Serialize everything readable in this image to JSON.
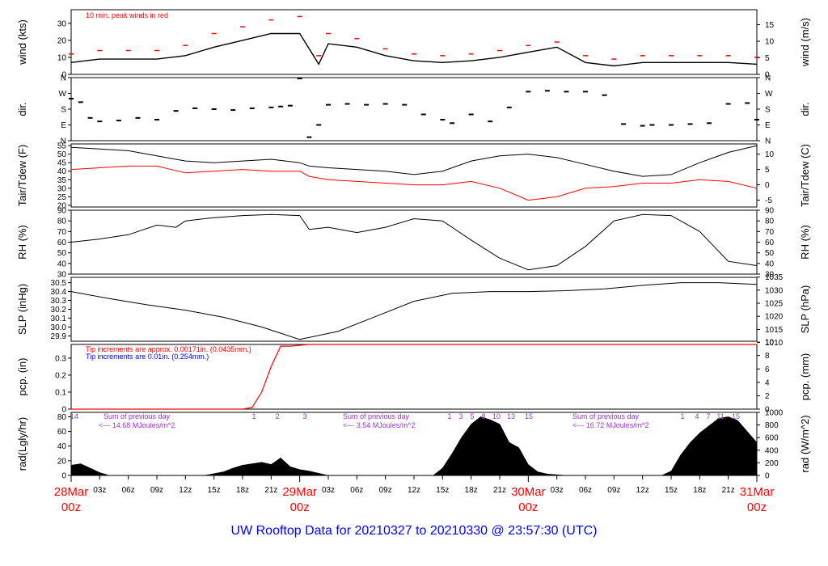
{
  "title": "UW Rooftop Data for 20210327  to  20210330 @ 23:57:30  (UTC)",
  "colors": {
    "axis": "#000000",
    "peak": "#ff0000",
    "precip_approx": "#ff0000",
    "precip_exact": "#0000ff",
    "solar_note": "#9933cc",
    "date": "#ff0000",
    "title": "#0000ff"
  },
  "chart_data": [
    {
      "type": "line",
      "panel": "wind",
      "ylabel_left": "wind (kts)",
      "ylabel_right": "wind (m/s)",
      "ylim": [
        0,
        38
      ],
      "left_ticks": [
        0,
        10,
        20,
        30
      ],
      "right_ticks": [
        0,
        5,
        10,
        15
      ],
      "right_scale": 0.514,
      "annotation": "10 min. peak winds in red",
      "x_hours": [
        0,
        3,
        6,
        9,
        12,
        15,
        18,
        21,
        24,
        26,
        27,
        30,
        33,
        36,
        39,
        42,
        45,
        48,
        51,
        54,
        57,
        60,
        63,
        66,
        69,
        72
      ],
      "series": [
        {
          "values": [
            7,
            9,
            9,
            9,
            11,
            16,
            20,
            24,
            24,
            6,
            18,
            16,
            11,
            8,
            7,
            8,
            10,
            13,
            16,
            7,
            5,
            7,
            7,
            7,
            7,
            6
          ]
        },
        {
          "values": [
            12,
            14,
            14,
            14,
            17,
            24,
            28,
            32,
            34,
            11,
            24,
            21,
            15,
            12,
            11,
            12,
            14,
            17,
            19,
            11,
            9,
            11,
            11,
            11,
            11,
            10
          ]
        }
      ]
    },
    {
      "type": "scatter",
      "panel": "dir",
      "ylabel_left": "dir.",
      "ylabel_right": "dir.",
      "ylim": [
        0,
        360
      ],
      "tick_values": [
        0,
        90,
        180,
        270,
        360
      ],
      "tick_labels": [
        "N",
        "E",
        "S",
        "W",
        "N"
      ],
      "x_hours": [
        0,
        1,
        2,
        3,
        5,
        7,
        9,
        11,
        13,
        15,
        17,
        19,
        21,
        22,
        23,
        24,
        25,
        26,
        27,
        29,
        31,
        33,
        35,
        37,
        39,
        40,
        42,
        44,
        46,
        48,
        50,
        52,
        54,
        56,
        58,
        60,
        61,
        63,
        65,
        67,
        69,
        71,
        72
      ],
      "values": [
        240,
        220,
        130,
        110,
        115,
        130,
        120,
        170,
        185,
        180,
        175,
        185,
        190,
        195,
        200,
        355,
        20,
        90,
        205,
        210,
        205,
        210,
        205,
        150,
        120,
        100,
        150,
        110,
        190,
        280,
        285,
        280,
        280,
        260,
        95,
        85,
        90,
        90,
        95,
        100,
        210,
        215,
        120
      ]
    },
    {
      "type": "line",
      "panel": "temp",
      "ylabel_left": "Tair/Tdew (F)",
      "ylabel_right": "Tair/Tdew (C)",
      "ylim": [
        19,
        56
      ],
      "left_ticks": [
        20,
        25,
        30,
        35,
        40,
        45,
        50,
        55
      ],
      "right_ticks": [
        -5,
        0,
        5,
        10
      ],
      "x_hours": [
        0,
        3,
        6,
        9,
        12,
        15,
        18,
        21,
        24,
        25,
        27,
        30,
        33,
        36,
        39,
        42,
        45,
        48,
        51,
        54,
        57,
        60,
        63,
        66,
        69,
        72
      ],
      "series": [
        {
          "name": "Tair",
          "values": [
            54,
            53,
            52,
            49,
            46,
            45,
            46,
            47,
            45,
            43,
            42,
            41,
            40,
            38,
            40,
            46,
            49,
            50,
            48,
            44,
            40,
            37,
            38,
            45,
            51,
            55
          ]
        },
        {
          "name": "Tdew",
          "values": [
            41,
            42,
            43,
            43,
            39,
            40,
            41,
            40,
            40,
            37,
            35,
            34,
            33,
            32,
            32,
            34,
            30,
            23,
            25,
            30,
            31,
            33,
            33,
            35,
            34,
            30
          ]
        }
      ]
    },
    {
      "type": "line",
      "panel": "rh",
      "ylabel_left": "RH (%)",
      "ylabel_right": "RH (%)",
      "ylim": [
        30,
        90
      ],
      "left_ticks": [
        30,
        40,
        50,
        60,
        70,
        80,
        90
      ],
      "x_hours": [
        0,
        3,
        6,
        9,
        11,
        12,
        15,
        18,
        21,
        24,
        25,
        27,
        30,
        33,
        36,
        39,
        42,
        45,
        48,
        51,
        54,
        57,
        60,
        63,
        66,
        69,
        72
      ],
      "series": [
        {
          "values": [
            60,
            63,
            67,
            76,
            74,
            80,
            83,
            85,
            86,
            85,
            72,
            74,
            69,
            74,
            82,
            80,
            62,
            45,
            34,
            38,
            56,
            80,
            86,
            85,
            70,
            42,
            38
          ]
        }
      ]
    },
    {
      "type": "line",
      "panel": "slp",
      "ylabel_left": "SLP (inHg)",
      "ylabel_right": "SLP (hPa)",
      "ylim": [
        29.84,
        30.56
      ],
      "left_ticks": [
        29.9,
        30.0,
        30.1,
        30.2,
        30.3,
        30.4,
        30.5
      ],
      "right_ticks": [
        1010,
        1015,
        1020,
        1025,
        1030,
        1035
      ],
      "x_hours": [
        0,
        4,
        8,
        12,
        16,
        20,
        24,
        28,
        32,
        36,
        40,
        44,
        48,
        52,
        56,
        60,
        64,
        68,
        72
      ],
      "series": [
        {
          "values": [
            30.4,
            30.32,
            30.25,
            30.19,
            30.11,
            30.0,
            29.86,
            29.95,
            30.12,
            30.29,
            30.38,
            30.4,
            30.4,
            30.41,
            30.43,
            30.47,
            30.5,
            30.5,
            30.48
          ]
        }
      ]
    },
    {
      "type": "line",
      "panel": "pcp",
      "ylabel_left": "pcp. (in)",
      "ylabel_right": "pcp. (mm)",
      "ylim": [
        0,
        0.38
      ],
      "left_ticks": [
        0.0,
        0.1,
        0.2,
        0.3
      ],
      "right_ticks": [
        0,
        2,
        4,
        6,
        8,
        10
      ],
      "note_red": "Tip increments are approx. 0.00171in. (0.0435mm.)",
      "note_blue": "Tip increments are 0.01in. (0.254mm.)",
      "x_hours": [
        0,
        18,
        19,
        20,
        21,
        22,
        23,
        25,
        72
      ],
      "series": [
        {
          "values": [
            0,
            0,
            0.01,
            0.1,
            0.25,
            0.37,
            0.37,
            0.38,
            0.38
          ]
        }
      ]
    },
    {
      "type": "area",
      "panel": "rad",
      "ylabel_left": "rad(Lgly/hr)",
      "ylabel_right": "rad (W/m^2)",
      "ylim": [
        0,
        86
      ],
      "left_ticks": [
        0,
        20,
        40,
        60,
        80
      ],
      "right_ticks": [
        0,
        200,
        400,
        600,
        800,
        1000
      ],
      "days": [
        {
          "sum_label": "Sum of previous day",
          "total": "<--- 14.68 MJoules/m^2",
          "hour_marks": [
            "14"
          ]
        },
        {
          "sum_label": "Sum of previous day",
          "total": "<--- 3.54 MJoules/m^2",
          "hour_marks": [
            "1",
            "2",
            "3"
          ]
        },
        {
          "sum_label": "Sum of previous day",
          "total": "<--- 16.72 MJoules/m^2",
          "hour_marks": [
            "1",
            "3",
            "5",
            "8",
            "10",
            "13",
            "15"
          ]
        },
        {
          "hour_marks": [
            "1",
            "4",
            "7",
            "11",
            "15"
          ]
        }
      ],
      "x_hours": [
        0,
        1,
        2,
        3,
        4,
        14,
        16,
        17,
        18,
        19,
        20,
        21,
        22,
        23,
        24,
        25,
        26,
        27,
        38,
        39,
        40,
        41,
        42,
        43,
        44,
        45,
        46,
        47,
        48,
        49,
        50,
        51,
        52,
        62,
        63,
        64,
        65,
        66,
        67,
        68,
        69,
        70,
        71,
        72
      ],
      "values": [
        14,
        16,
        10,
        4,
        0,
        0,
        5,
        10,
        14,
        16,
        18,
        15,
        24,
        12,
        8,
        6,
        3,
        0,
        0,
        10,
        30,
        52,
        70,
        80,
        76,
        70,
        45,
        38,
        15,
        5,
        2,
        1,
        0,
        0,
        6,
        28,
        45,
        58,
        68,
        78,
        80,
        75,
        60,
        45
      ]
    }
  ],
  "x_axis": {
    "hour_labels": [
      "03z",
      "06z",
      "09z",
      "12z",
      "15z",
      "18z",
      "21z",
      "03z",
      "06z",
      "09z",
      "12z",
      "15z",
      "18z",
      "21z",
      "03z",
      "06z",
      "09z",
      "12z",
      "15z",
      "18z",
      "21z"
    ],
    "day_labels": [
      {
        "date": "28Mar",
        "time": "00z"
      },
      {
        "date": "29Mar",
        "time": "00z"
      },
      {
        "date": "30Mar",
        "time": "00z"
      },
      {
        "date": "31Mar",
        "time": "00z"
      }
    ]
  }
}
